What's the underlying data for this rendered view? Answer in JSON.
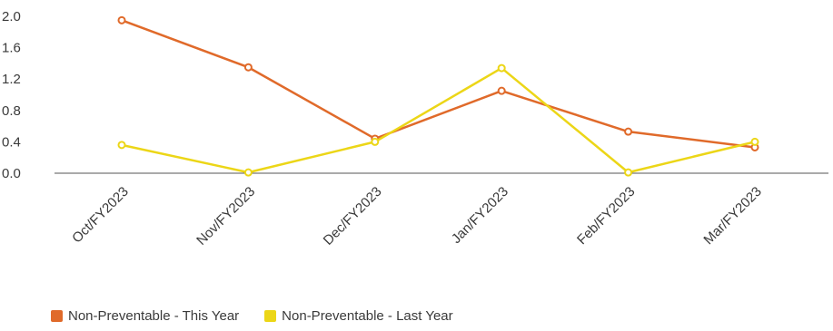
{
  "chart_data": {
    "type": "line",
    "categories": [
      "Oct/FY2023",
      "Nov/FY2023",
      "Dec/FY2023",
      "Jan/FY2023",
      "Feb/FY2023",
      "Mar/FY2023"
    ],
    "series": [
      {
        "name": "Non-Preventable - This Year",
        "color": "#e06a2a",
        "values": [
          1.95,
          1.35,
          0.44,
          1.05,
          0.53,
          0.33
        ]
      },
      {
        "name": "Non-Preventable - Last Year",
        "color": "#ecd617",
        "values": [
          0.36,
          0.01,
          0.4,
          1.34,
          0.01,
          0.4
        ]
      }
    ],
    "y_ticks": [
      "0.0",
      "0.4",
      "0.8",
      "1.2",
      "1.6",
      "2.0"
    ],
    "ylim": [
      0,
      2.0
    ],
    "grid": false,
    "legend_position": "bottom-left"
  }
}
